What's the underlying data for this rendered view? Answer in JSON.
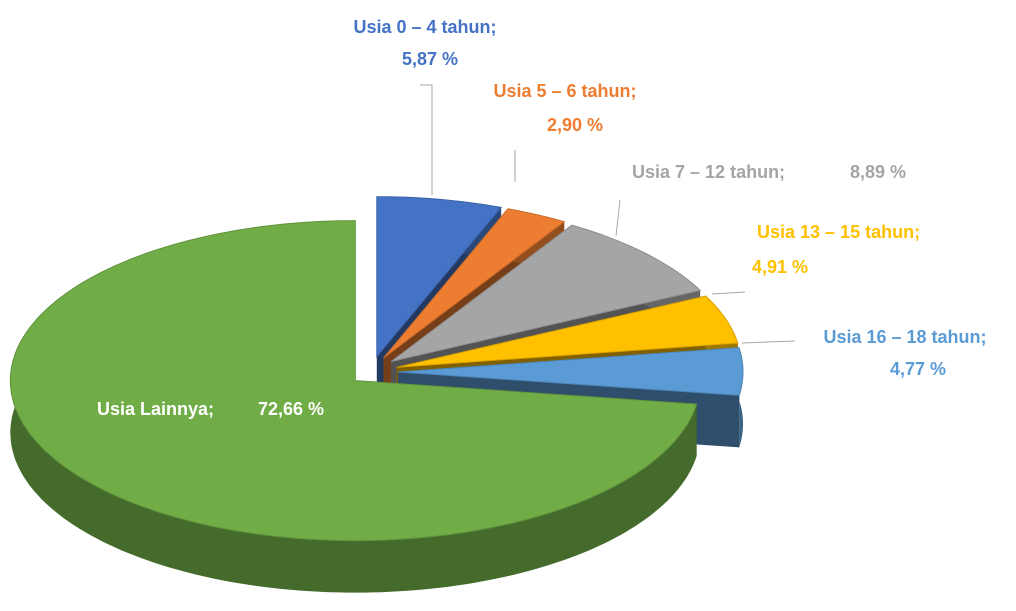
{
  "chart_data": {
    "type": "pie3d",
    "categories": [
      "Usia 0 – 4 tahun;",
      "Usia 5 – 6 tahun;",
      "Usia 7 – 12 tahun;",
      "Usia 13 – 15 tahun;",
      "Usia 16 – 18 tahun;",
      "Usia Lainnya;"
    ],
    "values": [
      5.87,
      2.9,
      8.89,
      4.91,
      4.77,
      72.66
    ],
    "value_labels": [
      "5,87 %",
      "2,90 %",
      "8,89 %",
      "4,91 %",
      "4,77 %",
      "72,66 %"
    ],
    "colors": [
      "#4472c4",
      "#ed7d31",
      "#a5a5a5",
      "#ffc000",
      "#5b9bd5",
      "#70ad47"
    ]
  }
}
